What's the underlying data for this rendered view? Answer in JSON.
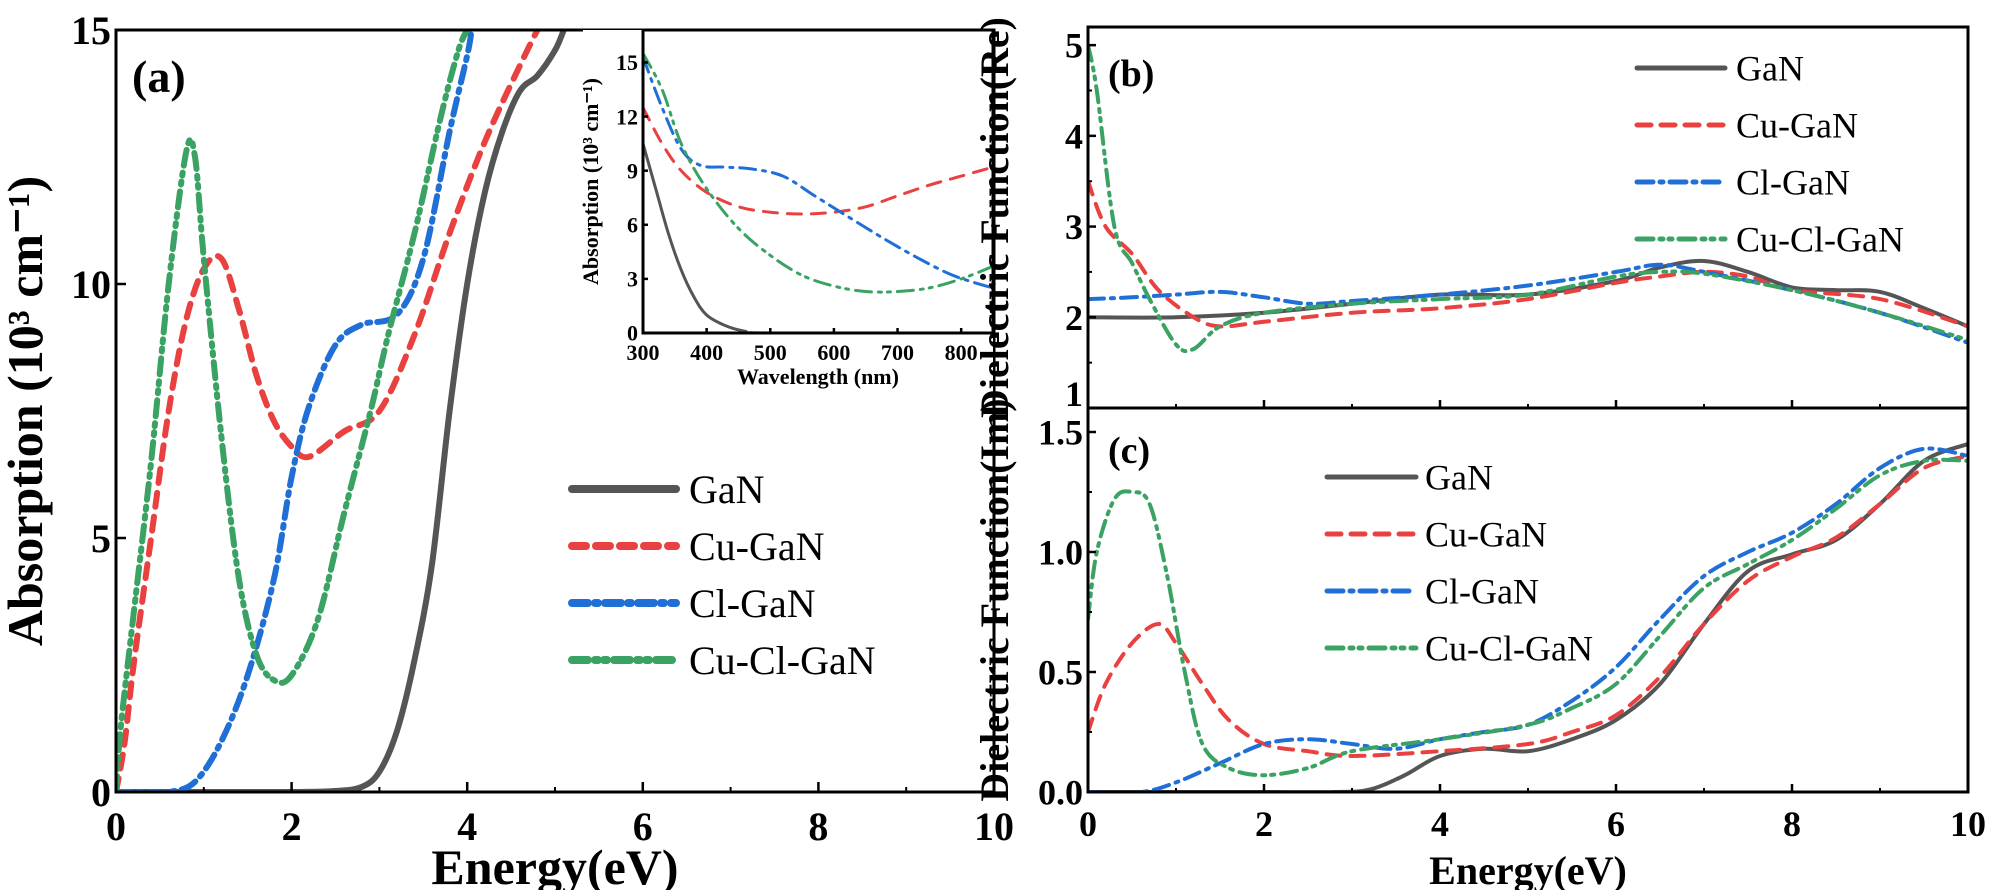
{
  "colors": {
    "GaN": "#555555",
    "Cu-GaN": "#e8413f",
    "Cl-GaN": "#1f6fd6",
    "Cu-Cl-GaN": "#3aa262"
  },
  "chart_data": [
    {
      "id": "a",
      "type": "line",
      "panel_label": "(a)",
      "xlabel": "Energy(eV)",
      "ylabel": "Absorption (10³ cm⁻¹)",
      "xlim": [
        0,
        10
      ],
      "ylim": [
        0,
        15
      ],
      "xticks": [
        "0",
        "2",
        "4",
        "6",
        "8",
        "10"
      ],
      "yticks": [
        "0",
        "5",
        "10",
        "15"
      ],
      "legend": [
        "GaN",
        "Cu-GaN",
        "Cl-GaN",
        "Cu-Cl-GaN"
      ],
      "legend_position": "center-right",
      "series": [
        {
          "name": "GaN",
          "x": [
            0,
            1,
            2,
            2.5,
            2.8,
            3.0,
            3.2,
            3.4,
            3.6,
            3.8,
            4.0,
            4.2,
            4.4,
            4.6,
            4.8,
            5.0,
            5.1
          ],
          "y": [
            0,
            0,
            0,
            0.02,
            0.1,
            0.4,
            1.2,
            2.6,
            4.5,
            7.5,
            10,
            11.8,
            13,
            13.8,
            14.1,
            14.6,
            15
          ]
        },
        {
          "name": "Cu-GaN",
          "x": [
            0,
            0.1,
            0.2,
            0.4,
            0.6,
            0.8,
            1.0,
            1.2,
            1.4,
            1.6,
            1.8,
            2.0,
            2.2,
            2.6,
            3.0,
            3.4,
            3.8,
            4.2,
            4.6,
            4.8
          ],
          "y": [
            0,
            1,
            2.5,
            5,
            7.5,
            9.3,
            10.3,
            10.5,
            9.5,
            8.2,
            7.3,
            6.8,
            6.6,
            7.1,
            7.5,
            9,
            11,
            12.8,
            14.3,
            15
          ]
        },
        {
          "name": "Cl-GaN",
          "x": [
            0,
            0.3,
            0.6,
            0.9,
            1.2,
            1.5,
            1.8,
            2.0,
            2.2,
            2.5,
            2.8,
            3.2,
            3.5,
            3.8,
            4.0,
            4.05
          ],
          "y": [
            0,
            0,
            0,
            0.2,
            1,
            2.3,
            4.2,
            6.2,
            7.6,
            8.8,
            9.2,
            9.4,
            10.5,
            13,
            14.5,
            15
          ]
        },
        {
          "name": "Cu-Cl-GaN",
          "x": [
            0,
            0.05,
            0.2,
            0.4,
            0.6,
            0.8,
            0.9,
            1.0,
            1.2,
            1.4,
            1.6,
            1.8,
            2.0,
            2.3,
            2.6,
            2.9,
            3.1,
            3.4,
            3.7,
            3.9,
            4.0
          ],
          "y": [
            0,
            1.2,
            3.5,
            6.5,
            10,
            12.6,
            12.5,
            10.5,
            7,
            4.2,
            2.7,
            2.2,
            2.3,
            3.4,
            5.5,
            7.5,
            9,
            11,
            13.3,
            14.6,
            15
          ]
        }
      ]
    },
    {
      "id": "inset",
      "type": "line",
      "xlabel": "Wavelength (nm)",
      "ylabel": "Absorption (10³ cm⁻¹)",
      "xlim": [
        300,
        850
      ],
      "ylim": [
        0,
        16.8
      ],
      "xticks": [
        "300",
        "400",
        "500",
        "600",
        "700",
        "800"
      ],
      "yticks": [
        "0",
        "3",
        "6",
        "9",
        "12",
        "15"
      ],
      "series": [
        {
          "name": "GaN",
          "x": [
            300,
            320,
            340,
            360,
            380,
            400,
            430,
            460,
            500,
            850
          ],
          "y": [
            10.5,
            8,
            5.5,
            3.5,
            2,
            1,
            0.4,
            0.1,
            0,
            0
          ]
        },
        {
          "name": "Cu-GaN",
          "x": [
            300,
            330,
            360,
            400,
            450,
            500,
            550,
            600,
            650,
            700,
            750,
            800,
            850
          ],
          "y": [
            12.5,
            10.5,
            9,
            7.8,
            7,
            6.7,
            6.6,
            6.7,
            7,
            7.6,
            8.2,
            8.7,
            9.2
          ]
        },
        {
          "name": "Cl-GaN",
          "x": [
            300,
            330,
            360,
            390,
            430,
            470,
            520,
            570,
            620,
            680,
            730,
            780,
            820,
            850
          ],
          "y": [
            15.3,
            12.5,
            10.2,
            9.3,
            9.2,
            9.1,
            8.7,
            7.6,
            6.5,
            5.2,
            4.2,
            3.3,
            2.8,
            2.5
          ]
        },
        {
          "name": "Cu-Cl-GaN",
          "x": [
            300,
            330,
            360,
            400,
            450,
            500,
            550,
            600,
            650,
            700,
            750,
            800,
            850
          ],
          "y": [
            15.5,
            13.5,
            10.5,
            8,
            5.8,
            4.3,
            3.2,
            2.6,
            2.3,
            2.3,
            2.5,
            3,
            3.7
          ]
        }
      ]
    },
    {
      "id": "b",
      "type": "line",
      "panel_label": "(b)",
      "xlabel": "",
      "ylabel": "Dielectric Function(Re)",
      "xlim": [
        0,
        10
      ],
      "ylim": [
        1,
        5.2
      ],
      "xticks": [],
      "yticks": [
        "1",
        "2",
        "3",
        "4",
        "5"
      ],
      "legend": [
        "GaN",
        "Cu-GaN",
        "Cl-GaN",
        "Cu-Cl-GaN"
      ],
      "legend_position": "top-right",
      "series": [
        {
          "name": "GaN",
          "x": [
            0,
            1,
            2,
            3,
            4,
            5,
            6,
            6.5,
            7,
            7.5,
            8,
            8.5,
            9,
            9.5,
            10
          ],
          "y": [
            2,
            2,
            2.05,
            2.15,
            2.25,
            2.25,
            2.4,
            2.55,
            2.62,
            2.5,
            2.33,
            2.3,
            2.28,
            2.1,
            1.9
          ]
        },
        {
          "name": "Cu-GaN",
          "x": [
            0,
            0.2,
            0.5,
            0.8,
            1.2,
            1.5,
            2,
            3,
            4,
            5,
            6,
            6.5,
            7,
            7.5,
            8,
            9,
            10
          ],
          "y": [
            3.5,
            3,
            2.7,
            2.3,
            2,
            1.9,
            1.95,
            2.05,
            2.1,
            2.2,
            2.38,
            2.45,
            2.5,
            2.45,
            2.3,
            2.2,
            1.9
          ]
        },
        {
          "name": "Cl-GaN",
          "x": [
            0,
            0.5,
            1,
            1.5,
            2,
            2.5,
            3,
            4,
            5,
            6,
            6.5,
            7,
            8,
            9,
            10
          ],
          "y": [
            2.2,
            2.22,
            2.25,
            2.28,
            2.22,
            2.15,
            2.18,
            2.25,
            2.35,
            2.5,
            2.58,
            2.5,
            2.3,
            2.05,
            1.72
          ]
        },
        {
          "name": "Cu-Cl-GaN",
          "x": [
            0,
            0.1,
            0.3,
            0.5,
            0.7,
            1,
            1.2,
            1.5,
            2,
            3,
            4,
            5,
            6,
            6.5,
            7,
            8,
            9,
            10
          ],
          "y": [
            5,
            4.5,
            3,
            2.6,
            2.2,
            1.7,
            1.65,
            1.9,
            2.05,
            2.15,
            2.2,
            2.25,
            2.45,
            2.5,
            2.48,
            2.3,
            2.05,
            1.75
          ]
        }
      ]
    },
    {
      "id": "c",
      "type": "line",
      "panel_label": "(c)",
      "xlabel": "Energy(eV)",
      "ylabel": "Dielectric Function(Im)",
      "xlim": [
        0,
        10
      ],
      "ylim": [
        0,
        1.6
      ],
      "xticks": [
        "0",
        "2",
        "4",
        "6",
        "8",
        "10"
      ],
      "yticks": [
        "0.0",
        "0.5",
        "1.0",
        "1.5"
      ],
      "legend": [
        "GaN",
        "Cu-GaN",
        "Cl-GaN",
        "Cu-Cl-GaN"
      ],
      "legend_position": "top-center",
      "series": [
        {
          "name": "GaN",
          "x": [
            0,
            1,
            2,
            2.8,
            3.2,
            3.6,
            4,
            4.5,
            5,
            5.5,
            6,
            6.5,
            7,
            7.5,
            8,
            8.5,
            9,
            9.5,
            10
          ],
          "y": [
            0,
            0,
            0,
            0,
            0.01,
            0.07,
            0.15,
            0.18,
            0.17,
            0.22,
            0.3,
            0.45,
            0.7,
            0.92,
            0.99,
            1.05,
            1.2,
            1.38,
            1.45
          ]
        },
        {
          "name": "Cu-GaN",
          "x": [
            0,
            0.2,
            0.5,
            0.8,
            1,
            1.3,
            1.6,
            2,
            2.5,
            3,
            4,
            5,
            5.5,
            6,
            6.5,
            7,
            7.5,
            8,
            8.5,
            9,
            9.5,
            10
          ],
          "y": [
            0.25,
            0.45,
            0.62,
            0.7,
            0.62,
            0.45,
            0.3,
            0.2,
            0.17,
            0.15,
            0.17,
            0.2,
            0.25,
            0.32,
            0.48,
            0.7,
            0.88,
            0.98,
            1.06,
            1.2,
            1.35,
            1.4
          ]
        },
        {
          "name": "Cl-GaN",
          "x": [
            0,
            0.6,
            1,
            1.5,
            2,
            2.5,
            3,
            3.5,
            4,
            4.5,
            5,
            5.5,
            6,
            6.5,
            7,
            7.5,
            8,
            8.5,
            9,
            9.5,
            10
          ],
          "y": [
            0,
            0,
            0.04,
            0.12,
            0.2,
            0.22,
            0.2,
            0.18,
            0.22,
            0.25,
            0.28,
            0.38,
            0.52,
            0.72,
            0.9,
            1,
            1.08,
            1.2,
            1.35,
            1.43,
            1.4
          ]
        },
        {
          "name": "Cu-Cl-GaN",
          "x": [
            0,
            0.1,
            0.3,
            0.5,
            0.7,
            0.9,
            1.1,
            1.3,
            1.6,
            2,
            2.5,
            3,
            4,
            5,
            5.5,
            6,
            6.5,
            7,
            7.5,
            8,
            8.5,
            9,
            9.5,
            10
          ],
          "y": [
            0.72,
            1,
            1.22,
            1.25,
            1.2,
            0.9,
            0.5,
            0.2,
            0.1,
            0.07,
            0.1,
            0.17,
            0.22,
            0.28,
            0.35,
            0.45,
            0.65,
            0.85,
            0.95,
            1.05,
            1.18,
            1.32,
            1.38,
            1.38
          ]
        }
      ]
    }
  ]
}
